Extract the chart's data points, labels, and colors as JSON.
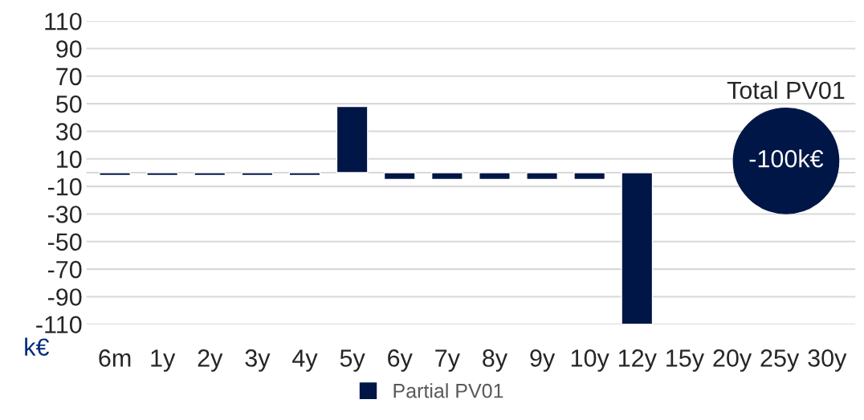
{
  "chart_data": {
    "type": "bar",
    "categories": [
      "6m",
      "1y",
      "2y",
      "3y",
      "4y",
      "5y",
      "6y",
      "7y",
      "8y",
      "9y",
      "10y",
      "12y",
      "15y",
      "20y",
      "25y",
      "30y"
    ],
    "series": [
      {
        "name": "Partial PV01",
        "color": "#001646",
        "values": [
          -2,
          -2,
          -2,
          -2,
          -2,
          48,
          -5,
          -5,
          -5,
          -5,
          -5,
          -110,
          null,
          null,
          null,
          null
        ]
      }
    ],
    "ylabel": "k€",
    "ylim": [
      -110,
      110
    ],
    "yticks": [
      -110,
      -90,
      -70,
      -50,
      -30,
      -10,
      10,
      30,
      50,
      70,
      90,
      110
    ],
    "grid": "y",
    "ref_lines": [
      {
        "axis": "y",
        "value": 0,
        "color": "#d9d9d9"
      }
    ],
    "annotations": [
      "Total PV01",
      "-100k€"
    ],
    "legend": "bottom"
  }
}
